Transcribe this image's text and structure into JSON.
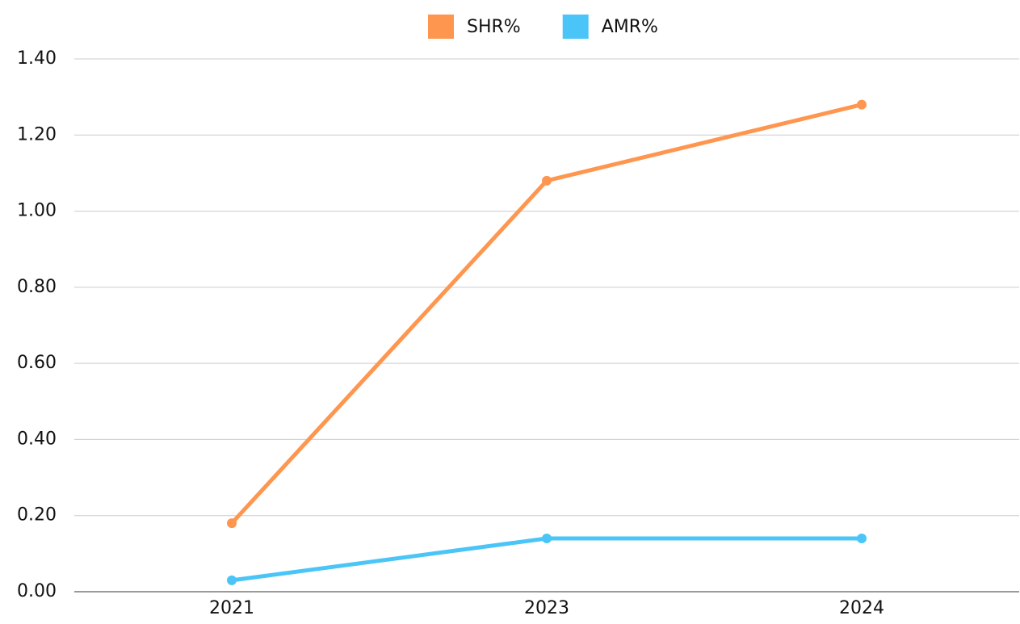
{
  "chart_data": {
    "type": "line",
    "categories": [
      "2021",
      "2023",
      "2024"
    ],
    "series": [
      {
        "name": "SHR%",
        "color": "#ff964f",
        "values": [
          0.18,
          1.08,
          1.28
        ]
      },
      {
        "name": "AMR%",
        "color": "#4bc5f8",
        "values": [
          0.03,
          0.14,
          0.14
        ]
      }
    ],
    "ylim": [
      0,
      1.4
    ],
    "yticks": [
      {
        "value": 0,
        "label": "0.00"
      },
      {
        "value": 0.2,
        "label": "0.20"
      },
      {
        "value": 0.4,
        "label": "0.40"
      },
      {
        "value": 0.6,
        "label": "0.60"
      },
      {
        "value": 0.8,
        "label": "0.80"
      },
      {
        "value": 1.0,
        "label": "1.00"
      },
      {
        "value": 1.2,
        "label": "1.20"
      },
      {
        "value": 1.4,
        "label": "1.40"
      }
    ],
    "grid": true,
    "legend": "top"
  }
}
